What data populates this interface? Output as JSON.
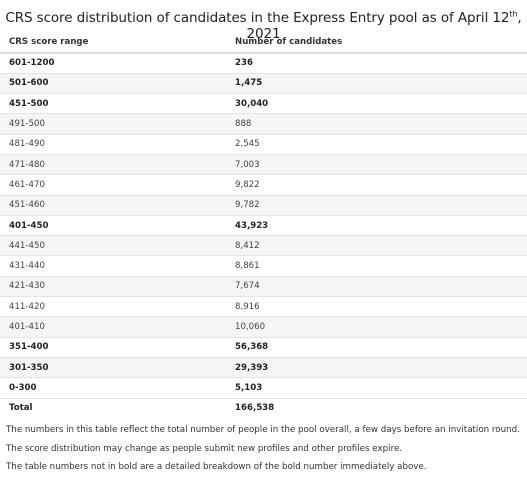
{
  "title": {
    "text_main": "CRS score distribution of candidates in the Express Entry pool as of April 12",
    "superscript": "th",
    "text_end": ", 2021"
  },
  "table": {
    "headers": [
      "CRS score range",
      "Number of candidates"
    ],
    "rows": [
      {
        "range": "601-1200",
        "count": "236",
        "bold": true
      },
      {
        "range": "501-600",
        "count": "1,475",
        "bold": true
      },
      {
        "range": "451-500",
        "count": "30,040",
        "bold": true
      },
      {
        "range": "491-500",
        "count": "888",
        "bold": false
      },
      {
        "range": "481-490",
        "count": "2,545",
        "bold": false
      },
      {
        "range": "471-480",
        "count": "7,003",
        "bold": false
      },
      {
        "range": "461-470",
        "count": "9,822",
        "bold": false
      },
      {
        "range": "451-460",
        "count": "9,782",
        "bold": false
      },
      {
        "range": "401-450",
        "count": "43,923",
        "bold": true
      },
      {
        "range": "441-450",
        "count": "8,412",
        "bold": false
      },
      {
        "range": "431-440",
        "count": "8,861",
        "bold": false
      },
      {
        "range": "421-430",
        "count": "7,674",
        "bold": false
      },
      {
        "range": "411-420",
        "count": "8,916",
        "bold": false
      },
      {
        "range": "401-410",
        "count": "10,060",
        "bold": false
      },
      {
        "range": "351-400",
        "count": "56,368",
        "bold": true
      },
      {
        "range": "301-350",
        "count": "29,393",
        "bold": true
      },
      {
        "range": "0-300",
        "count": "5,103",
        "bold": true
      }
    ],
    "total": {
      "label": "Total",
      "count": "166,538"
    }
  },
  "notes": [
    "The numbers in this table reflect the total number of people in the pool overall, a few days before an invitation round.",
    "The score distribution may change as people submit new profiles and other profiles expire.",
    "The table numbers not in bold are a detailed breakdown of the bold number immediately above."
  ]
}
